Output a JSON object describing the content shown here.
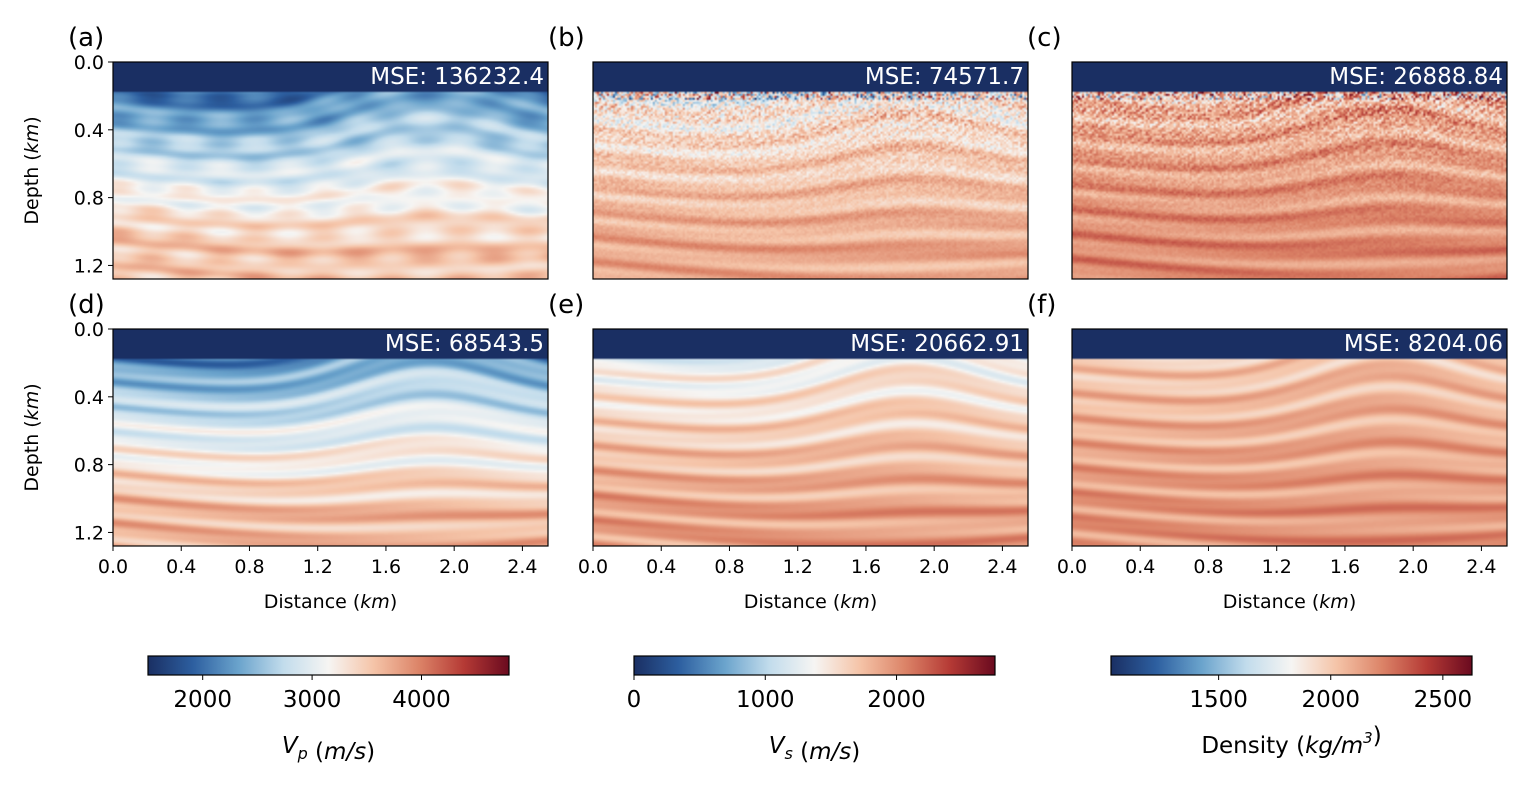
{
  "chart_data": {
    "type": "heatmap",
    "x_axis": {
      "label": "Distance",
      "unit": "km",
      "range": [
        0.0,
        2.55
      ],
      "ticks": [
        0.0,
        0.4,
        0.8,
        1.2,
        1.6,
        2.0,
        2.4
      ],
      "tick_labels": [
        "0.0",
        "0.4",
        "0.8",
        "1.2",
        "1.6",
        "2.0",
        "2.4"
      ]
    },
    "y_axis": {
      "label": "Depth",
      "unit": "km",
      "range": [
        0.0,
        1.28
      ],
      "inverted": true,
      "ticks": [
        0.0,
        0.4,
        0.8,
        1.2
      ],
      "tick_labels": [
        "0.0",
        "0.4",
        "0.8",
        "1.2"
      ]
    },
    "panels": [
      {
        "letter": "(a)",
        "mse_text": "MSE: 136232.4",
        "mse": 136232.4,
        "property": "Vp",
        "colorbar": 0,
        "water_depth": 0.17,
        "style": "smooth",
        "contrast": 0.45,
        "top_value": 0.15,
        "bottom_value": 0.62
      },
      {
        "letter": "(b)",
        "mse_text": "MSE: 74571.7",
        "mse": 74571.7,
        "property": "Vs",
        "colorbar": 1,
        "water_depth": 0.17,
        "style": "noisy",
        "contrast": 0.55,
        "top_value": 0.5,
        "bottom_value": 0.68
      },
      {
        "letter": "(c)",
        "mse_text": "MSE: 26888.84",
        "mse": 26888.84,
        "property": "Density",
        "colorbar": 2,
        "water_depth": 0.17,
        "style": "noisy",
        "contrast": 0.6,
        "top_value": 0.64,
        "bottom_value": 0.74
      },
      {
        "letter": "(d)",
        "mse_text": "MSE: 68543.5",
        "mse": 68543.5,
        "property": "Vp",
        "colorbar": 0,
        "water_depth": 0.17,
        "style": "layered",
        "contrast": 0.7,
        "top_value": 0.2,
        "bottom_value": 0.65
      },
      {
        "letter": "(e)",
        "mse_text": "MSE: 20662.91",
        "mse": 20662.91,
        "property": "Vs",
        "colorbar": 1,
        "water_depth": 0.17,
        "style": "layered",
        "contrast": 0.65,
        "top_value": 0.47,
        "bottom_value": 0.7
      },
      {
        "letter": "(f)",
        "mse_text": "MSE: 8204.06",
        "mse": 8204.06,
        "property": "Density",
        "colorbar": 2,
        "water_depth": 0.17,
        "style": "layered",
        "contrast": 0.6,
        "top_value": 0.6,
        "bottom_value": 0.72
      }
    ],
    "colorbars": [
      {
        "label_symbol": "V",
        "label_sub": "p",
        "label_unit": "(m/s)",
        "range": [
          1500,
          4800
        ],
        "ticks": [
          2000,
          3000,
          4000
        ],
        "tick_labels": [
          "2000",
          "3000",
          "4000"
        ]
      },
      {
        "label_symbol": "V",
        "label_sub": "s",
        "label_unit": "(m/s)",
        "range": [
          0,
          2750
        ],
        "ticks": [
          0,
          1000,
          2000
        ],
        "tick_labels": [
          "0",
          "1000",
          "2000"
        ]
      },
      {
        "label_symbol": "Density",
        "label_sub": "",
        "label_unit": "(kg/m",
        "label_sup": "3",
        "label_close": ")",
        "range": [
          1020,
          2630
        ],
        "ticks": [
          1500,
          2000,
          2500
        ],
        "tick_labels": [
          "1500",
          "2000",
          "2500"
        ]
      }
    ],
    "colormap": "RdBu_r",
    "colormap_stops": [
      "#1a2f63",
      "#2d5fa0",
      "#6aa3cc",
      "#c2dcec",
      "#f6f5f3",
      "#f5c4a8",
      "#dc8468",
      "#b53a35",
      "#6a0a1f"
    ]
  }
}
